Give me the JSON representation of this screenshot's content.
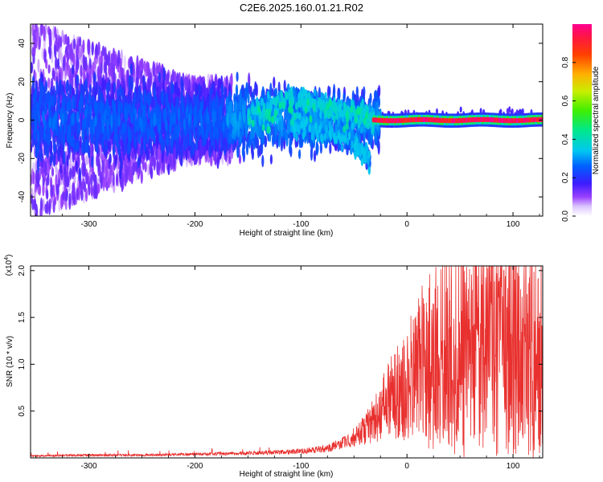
{
  "title": "C2E6.2025.160.01.21.R02",
  "colors": {
    "snr_line": "#e8312f",
    "background": "#ffffff",
    "axis": "#000000",
    "colormap": [
      "#ffffff",
      "#dcc6ff",
      "#8a2cff",
      "#2a1cff",
      "#00ccee",
      "#00ee66",
      "#aaee00",
      "#ffcc00",
      "#ff5a00",
      "#ff2050",
      "#ff0088"
    ]
  },
  "chart_data": [
    {
      "type": "heatmap",
      "title": "",
      "xlabel": "Height of straight line (km)",
      "ylabel": "Frequency (Hz)",
      "xlim": [
        -355,
        128
      ],
      "ylim": [
        -50,
        50
      ],
      "xticks": [
        -300,
        -200,
        -100,
        0,
        100
      ],
      "xtick_labels": [
        "-300",
        "-200",
        "-100",
        "0",
        "100"
      ],
      "yticks": [
        -40,
        -20,
        0,
        20,
        40
      ],
      "ytick_labels": [
        "-40",
        "-20",
        "0",
        "20",
        "40"
      ],
      "colorbar": {
        "label": "Normalized spectral amplitude",
        "range": [
          0,
          1
        ],
        "ticks": [
          0.0,
          0.2,
          0.4,
          0.6,
          0.8
        ],
        "tick_labels": [
          "0.0",
          "0.2",
          "0.4",
          "0.6",
          "0.8"
        ]
      },
      "features": [
        {
          "description": "diffuse broadband noise",
          "x_range": [
            -355,
            -165
          ],
          "y_range": [
            -50,
            50
          ],
          "amplitude": 0.1
        },
        {
          "description": "main band",
          "x_range": [
            -355,
            128
          ],
          "center_y": 0,
          "amplitude_range": [
            0.15,
            1.0
          ]
        },
        {
          "description": "upper branch",
          "points": [
            [
              -150,
              4
            ],
            [
              -110,
              12
            ],
            [
              -80,
              8
            ],
            [
              -50,
              4
            ],
            [
              -30,
              1
            ]
          ]
        },
        {
          "description": "lower branch",
          "points": [
            [
              -110,
              -2
            ],
            [
              -80,
              -6
            ],
            [
              -50,
              -12
            ],
            [
              -35,
              -20
            ]
          ]
        },
        {
          "description": "strong carrier",
          "x_range": [
            -30,
            128
          ],
          "center_y": 0,
          "amplitude": 0.95
        }
      ]
    },
    {
      "type": "line",
      "title": "",
      "xlabel": "Height of straight line (km)",
      "ylabel": "SNR (10 * v/v)",
      "y_multiplier": "(x10",
      "y_multiplier_exp": "4",
      "y_multiplier_close": ")",
      "xlim": [
        -355,
        128
      ],
      "ylim": [
        0,
        2.05
      ],
      "xticks": [
        -300,
        -200,
        -100,
        0,
        100
      ],
      "xtick_labels": [
        "-300",
        "-200",
        "-100",
        "0",
        "100"
      ],
      "yticks": [
        0.5,
        1.0,
        1.5,
        2.0
      ],
      "ytick_labels": [
        "0.5",
        "1.0",
        "1.5",
        "2.0"
      ],
      "series": [
        {
          "envelope_x": [
            -355,
            -300,
            -250,
            -200,
            -150,
            -100,
            -75,
            -50,
            -40,
            -25,
            -15,
            0,
            10,
            25,
            40,
            55,
            75,
            95,
            110,
            128
          ],
          "envelope_y": [
            0.02,
            0.03,
            0.03,
            0.04,
            0.05,
            0.07,
            0.1,
            0.2,
            0.3,
            0.5,
            0.65,
            0.8,
            0.95,
            1.1,
            1.15,
            1.15,
            1.2,
            1.2,
            1.2,
            1.1
          ],
          "peak_max": 2.05
        }
      ]
    }
  ]
}
